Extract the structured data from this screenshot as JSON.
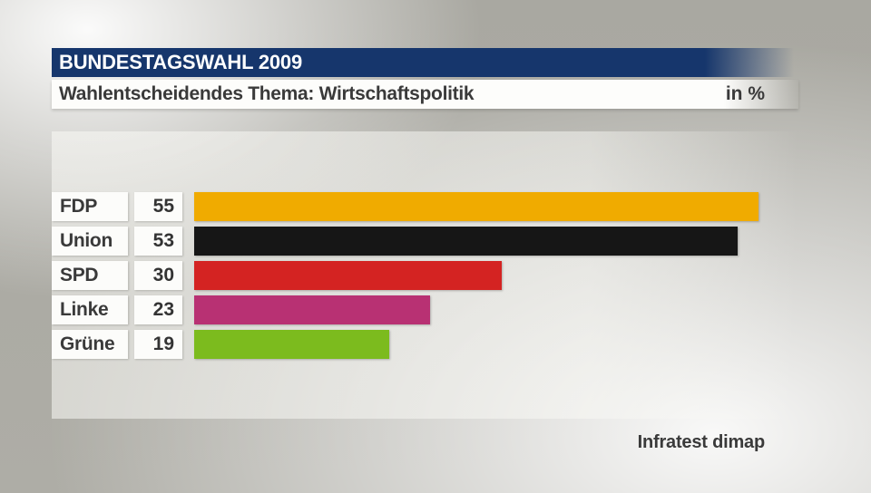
{
  "header": {
    "title": "BUNDESTAGSWAHL 2009",
    "subtitle": "Wahlentscheidendes Thema: Wirtschaftspolitik",
    "unit_label": "in %"
  },
  "footer": {
    "source": "Infratest dimap"
  },
  "colors": {
    "header_blue": "#16366c",
    "box_white": "#fcfcfa",
    "text_dark": "#3a3a3a"
  },
  "chart_data": {
    "type": "bar",
    "orientation": "horizontal",
    "title": "Wahlentscheidendes Thema: Wirtschaftspolitik",
    "unit": "%",
    "categories": [
      "FDP",
      "Union",
      "SPD",
      "Linke",
      "Grüne"
    ],
    "values": [
      55,
      53,
      30,
      23,
      19
    ],
    "bar_colors": [
      "#f0ab00",
      "#161616",
      "#d42322",
      "#b83173",
      "#7cbb1e"
    ],
    "xlim": [
      0,
      73
    ],
    "value_labels_shown": true,
    "source": "Infratest dimap"
  }
}
